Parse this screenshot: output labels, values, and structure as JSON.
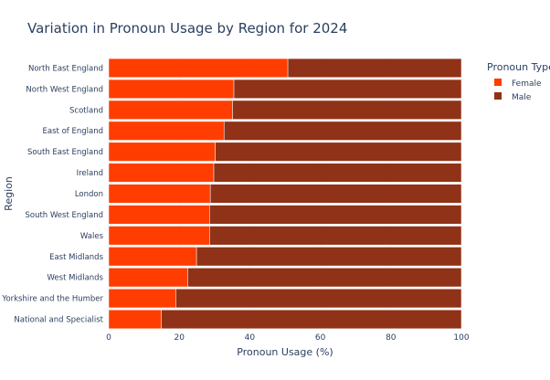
{
  "chart_data": {
    "type": "bar",
    "orientation": "horizontal",
    "stacked": true,
    "title": "Variation in Pronoun Usage by Region for 2024",
    "xlabel": "Pronoun Usage (%)",
    "ylabel": "Region",
    "xlim": [
      0,
      100
    ],
    "xticks": [
      0,
      20,
      40,
      60,
      80,
      100
    ],
    "grid": true,
    "legend": {
      "title": "Pronoun Type",
      "placement": "top-right"
    },
    "categories": [
      "North East England",
      "North West England",
      "Scotland",
      "East of England",
      "South East England",
      "Ireland",
      "London",
      "South West England",
      "Wales",
      "East Midlands",
      "West Midlands",
      "Yorkshire and the Humber",
      "National and Specialist"
    ],
    "series": [
      {
        "name": "Female",
        "color": "#ff3d00",
        "values": [
          50.8,
          35.5,
          35.1,
          32.7,
          30.2,
          29.8,
          28.8,
          28.6,
          28.6,
          24.9,
          22.4,
          19.1,
          14.9
        ]
      },
      {
        "name": "Male",
        "color": "#8f3217",
        "values": [
          49.2,
          64.5,
          64.9,
          67.3,
          69.8,
          70.2,
          71.2,
          71.4,
          71.4,
          75.1,
          77.6,
          80.9,
          85.1
        ]
      }
    ]
  }
}
